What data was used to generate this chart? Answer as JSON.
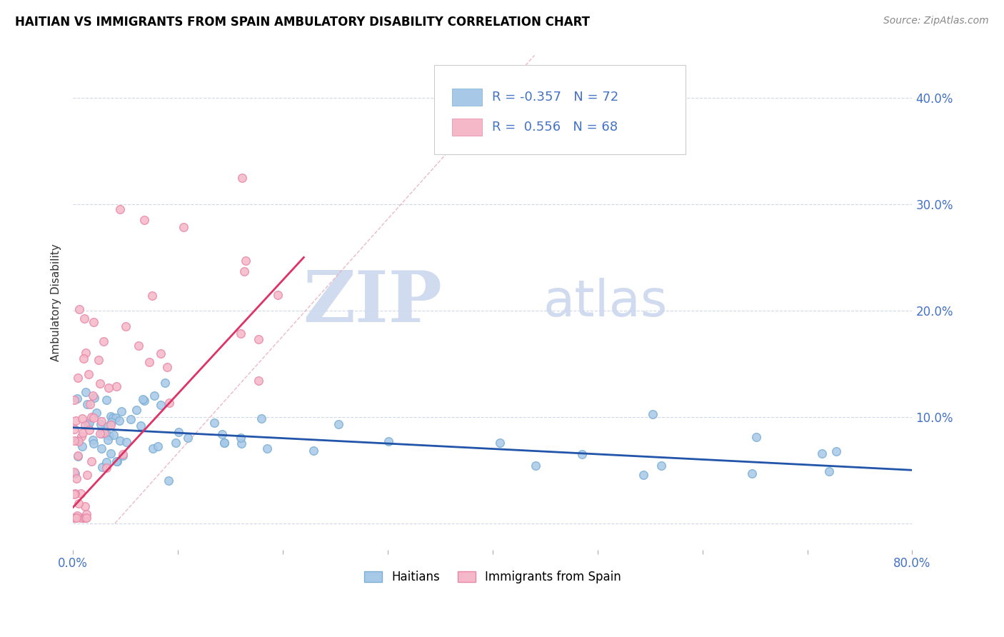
{
  "title": "HAITIAN VS IMMIGRANTS FROM SPAIN AMBULATORY DISABILITY CORRELATION CHART",
  "source": "Source: ZipAtlas.com",
  "ylabel": "Ambulatory Disability",
  "xlim": [
    0.0,
    0.8
  ],
  "ylim": [
    -0.025,
    0.44
  ],
  "x_ticks": [
    0.0,
    0.1,
    0.2,
    0.3,
    0.4,
    0.5,
    0.6,
    0.7,
    0.8
  ],
  "x_tick_labels": [
    "0.0%",
    "",
    "",
    "",
    "",
    "",
    "",
    "",
    "80.0%"
  ],
  "y_ticks": [
    0.0,
    0.1,
    0.2,
    0.3,
    0.4
  ],
  "y_tick_labels_right": [
    "",
    "10.0%",
    "20.0%",
    "30.0%",
    "40.0%"
  ],
  "blue_color": "#a8c8e8",
  "blue_edge_color": "#7aafd4",
  "pink_color": "#f5b8c8",
  "pink_edge_color": "#e888a8",
  "blue_line_color": "#2255aa",
  "pink_line_color": "#dd3366",
  "dash_line_color": "#e8a8b8",
  "blue_R": -0.357,
  "blue_N": 72,
  "pink_R": 0.556,
  "pink_N": 68,
  "watermark_zip": "ZIP",
  "watermark_atlas": "atlas",
  "watermark_color": "#ccd8ee",
  "legend_R_color": "#4472c4",
  "legend_N_color": "#4472c4",
  "tick_color": "#4472c4",
  "grid_color": "#d0d8e8",
  "title_fontsize": 12,
  "source_fontsize": 10,
  "tick_fontsize": 12
}
